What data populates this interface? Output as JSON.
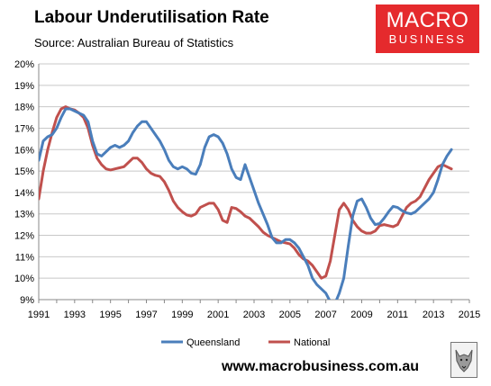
{
  "header": {
    "title": "Labour Underutilisation Rate",
    "subtitle": "Source: Australian Bureau of Statistics"
  },
  "logo": {
    "line1": "MACRO",
    "line2": "BUSINESS",
    "color": "#e52a2d"
  },
  "footer": {
    "url": "www.macrobusiness.com.au",
    "mascot": "wolf-icon"
  },
  "chart_data": {
    "type": "line",
    "title": "Labour Underutilisation Rate",
    "xlabel": "",
    "ylabel": "",
    "xlim": [
      1991,
      2015
    ],
    "ylim": [
      9,
      20
    ],
    "x_ticks": [
      "1991",
      "1993",
      "1995",
      "1997",
      "1999",
      "2001",
      "2003",
      "2005",
      "2007",
      "2009",
      "2011",
      "2013",
      "2015"
    ],
    "y_ticks": [
      "9%",
      "10%",
      "11%",
      "12%",
      "13%",
      "14%",
      "15%",
      "16%",
      "17%",
      "18%",
      "19%",
      "20%"
    ],
    "grid": true,
    "legend_position": "bottom",
    "series": [
      {
        "name": "Queensland",
        "color": "#4a7ebb",
        "points": [
          [
            1991.0,
            15.5
          ],
          [
            1991.25,
            16.4
          ],
          [
            1991.5,
            16.6
          ],
          [
            1991.75,
            16.7
          ],
          [
            1992.0,
            17.0
          ],
          [
            1992.25,
            17.5
          ],
          [
            1992.5,
            17.9
          ],
          [
            1992.75,
            17.9
          ],
          [
            1993.0,
            17.8
          ],
          [
            1993.25,
            17.7
          ],
          [
            1993.5,
            17.6
          ],
          [
            1993.75,
            17.3
          ],
          [
            1994.0,
            16.4
          ],
          [
            1994.25,
            15.8
          ],
          [
            1994.5,
            15.7
          ],
          [
            1994.75,
            15.9
          ],
          [
            1995.0,
            16.1
          ],
          [
            1995.25,
            16.2
          ],
          [
            1995.5,
            16.1
          ],
          [
            1995.75,
            16.2
          ],
          [
            1996.0,
            16.4
          ],
          [
            1996.25,
            16.8
          ],
          [
            1996.5,
            17.1
          ],
          [
            1996.75,
            17.3
          ],
          [
            1997.0,
            17.3
          ],
          [
            1997.25,
            17.0
          ],
          [
            1997.5,
            16.7
          ],
          [
            1997.75,
            16.4
          ],
          [
            1998.0,
            16.0
          ],
          [
            1998.25,
            15.5
          ],
          [
            1998.5,
            15.2
          ],
          [
            1998.75,
            15.1
          ],
          [
            1999.0,
            15.2
          ],
          [
            1999.25,
            15.1
          ],
          [
            1999.5,
            14.9
          ],
          [
            1999.75,
            14.85
          ],
          [
            2000.0,
            15.3
          ],
          [
            2000.25,
            16.1
          ],
          [
            2000.5,
            16.6
          ],
          [
            2000.75,
            16.7
          ],
          [
            2001.0,
            16.6
          ],
          [
            2001.25,
            16.3
          ],
          [
            2001.5,
            15.8
          ],
          [
            2001.75,
            15.1
          ],
          [
            2002.0,
            14.7
          ],
          [
            2002.25,
            14.6
          ],
          [
            2002.5,
            15.3
          ],
          [
            2002.75,
            14.7
          ],
          [
            2003.0,
            14.1
          ],
          [
            2003.25,
            13.5
          ],
          [
            2003.5,
            13.0
          ],
          [
            2003.75,
            12.5
          ],
          [
            2004.0,
            11.9
          ],
          [
            2004.25,
            11.65
          ],
          [
            2004.5,
            11.65
          ],
          [
            2004.75,
            11.8
          ],
          [
            2005.0,
            11.8
          ],
          [
            2005.25,
            11.65
          ],
          [
            2005.5,
            11.4
          ],
          [
            2005.75,
            11.0
          ],
          [
            2006.0,
            10.6
          ],
          [
            2006.25,
            10.0
          ],
          [
            2006.5,
            9.7
          ],
          [
            2006.75,
            9.5
          ],
          [
            2007.0,
            9.3
          ],
          [
            2007.25,
            8.9
          ],
          [
            2007.5,
            8.8
          ],
          [
            2007.75,
            9.3
          ],
          [
            2008.0,
            10.0
          ],
          [
            2008.25,
            11.5
          ],
          [
            2008.5,
            12.9
          ],
          [
            2008.75,
            13.6
          ],
          [
            2009.0,
            13.7
          ],
          [
            2009.25,
            13.3
          ],
          [
            2009.5,
            12.8
          ],
          [
            2009.75,
            12.5
          ],
          [
            2010.0,
            12.55
          ],
          [
            2010.25,
            12.8
          ],
          [
            2010.5,
            13.1
          ],
          [
            2010.75,
            13.35
          ],
          [
            2011.0,
            13.3
          ],
          [
            2011.25,
            13.15
          ],
          [
            2011.5,
            13.05
          ],
          [
            2011.75,
            13.0
          ],
          [
            2012.0,
            13.1
          ],
          [
            2012.25,
            13.3
          ],
          [
            2012.5,
            13.5
          ],
          [
            2012.75,
            13.7
          ],
          [
            2013.0,
            14.0
          ],
          [
            2013.25,
            14.6
          ],
          [
            2013.5,
            15.3
          ],
          [
            2013.75,
            15.7
          ],
          [
            2014.0,
            16.0
          ]
        ]
      },
      {
        "name": "National",
        "color": "#c0504d",
        "points": [
          [
            1991.0,
            13.7
          ],
          [
            1991.25,
            15.0
          ],
          [
            1991.5,
            16.0
          ],
          [
            1991.75,
            16.8
          ],
          [
            1992.0,
            17.5
          ],
          [
            1992.25,
            17.9
          ],
          [
            1992.5,
            18.0
          ],
          [
            1992.75,
            17.9
          ],
          [
            1993.0,
            17.85
          ],
          [
            1993.25,
            17.7
          ],
          [
            1993.5,
            17.5
          ],
          [
            1993.75,
            17.0
          ],
          [
            1994.0,
            16.2
          ],
          [
            1994.25,
            15.6
          ],
          [
            1994.5,
            15.3
          ],
          [
            1994.75,
            15.1
          ],
          [
            1995.0,
            15.05
          ],
          [
            1995.25,
            15.1
          ],
          [
            1995.5,
            15.15
          ],
          [
            1995.75,
            15.2
          ],
          [
            1996.0,
            15.4
          ],
          [
            1996.25,
            15.6
          ],
          [
            1996.5,
            15.6
          ],
          [
            1996.75,
            15.4
          ],
          [
            1997.0,
            15.1
          ],
          [
            1997.25,
            14.9
          ],
          [
            1997.5,
            14.8
          ],
          [
            1997.75,
            14.75
          ],
          [
            1998.0,
            14.5
          ],
          [
            1998.25,
            14.1
          ],
          [
            1998.5,
            13.6
          ],
          [
            1998.75,
            13.3
          ],
          [
            1999.0,
            13.1
          ],
          [
            1999.25,
            12.95
          ],
          [
            1999.5,
            12.9
          ],
          [
            1999.75,
            13.0
          ],
          [
            2000.0,
            13.3
          ],
          [
            2000.25,
            13.4
          ],
          [
            2000.5,
            13.5
          ],
          [
            2000.75,
            13.5
          ],
          [
            2001.0,
            13.2
          ],
          [
            2001.25,
            12.7
          ],
          [
            2001.5,
            12.6
          ],
          [
            2001.75,
            13.3
          ],
          [
            2002.0,
            13.25
          ],
          [
            2002.25,
            13.1
          ],
          [
            2002.5,
            12.9
          ],
          [
            2002.75,
            12.8
          ],
          [
            2003.0,
            12.6
          ],
          [
            2003.25,
            12.4
          ],
          [
            2003.5,
            12.15
          ],
          [
            2003.75,
            12.0
          ],
          [
            2004.0,
            11.9
          ],
          [
            2004.25,
            11.8
          ],
          [
            2004.5,
            11.7
          ],
          [
            2004.75,
            11.65
          ],
          [
            2005.0,
            11.6
          ],
          [
            2005.25,
            11.4
          ],
          [
            2005.5,
            11.1
          ],
          [
            2005.75,
            10.9
          ],
          [
            2006.0,
            10.8
          ],
          [
            2006.25,
            10.6
          ],
          [
            2006.5,
            10.3
          ],
          [
            2006.75,
            10.0
          ],
          [
            2007.0,
            10.1
          ],
          [
            2007.25,
            10.8
          ],
          [
            2007.5,
            12.0
          ],
          [
            2007.75,
            13.2
          ],
          [
            2008.0,
            13.5
          ],
          [
            2008.25,
            13.2
          ],
          [
            2008.5,
            12.7
          ],
          [
            2008.75,
            12.4
          ],
          [
            2009.0,
            12.2
          ],
          [
            2009.25,
            12.1
          ],
          [
            2009.5,
            12.1
          ],
          [
            2009.75,
            12.2
          ],
          [
            2010.0,
            12.45
          ],
          [
            2010.25,
            12.5
          ],
          [
            2010.5,
            12.45
          ],
          [
            2010.75,
            12.4
          ],
          [
            2011.0,
            12.5
          ],
          [
            2011.25,
            12.9
          ],
          [
            2011.5,
            13.3
          ],
          [
            2011.75,
            13.5
          ],
          [
            2012.0,
            13.6
          ],
          [
            2012.25,
            13.8
          ],
          [
            2012.5,
            14.2
          ],
          [
            2012.75,
            14.6
          ],
          [
            2013.0,
            14.9
          ],
          [
            2013.25,
            15.2
          ],
          [
            2013.5,
            15.3
          ],
          [
            2013.75,
            15.2
          ],
          [
            2014.0,
            15.1
          ]
        ]
      }
    ]
  }
}
